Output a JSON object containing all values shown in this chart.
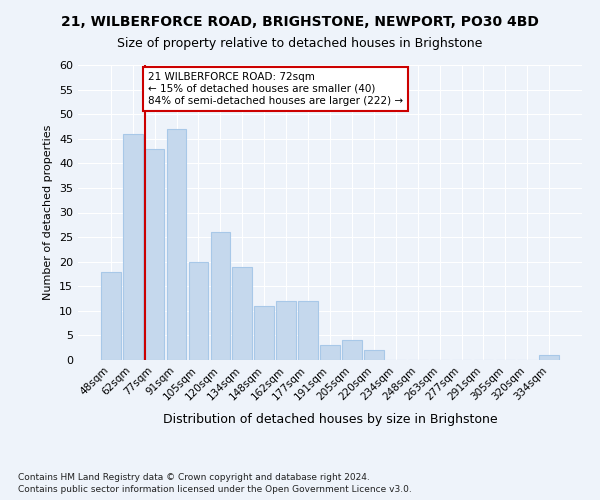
{
  "title1": "21, WILBERFORCE ROAD, BRIGHSTONE, NEWPORT, PO30 4BD",
  "title2": "Size of property relative to detached houses in Brighstone",
  "xlabel": "Distribution of detached houses by size in Brighstone",
  "ylabel": "Number of detached properties",
  "categories": [
    "48sqm",
    "62sqm",
    "77sqm",
    "91sqm",
    "105sqm",
    "120sqm",
    "134sqm",
    "148sqm",
    "162sqm",
    "177sqm",
    "191sqm",
    "205sqm",
    "220sqm",
    "234sqm",
    "248sqm",
    "263sqm",
    "277sqm",
    "291sqm",
    "305sqm",
    "320sqm",
    "334sqm"
  ],
  "values": [
    18,
    46,
    43,
    47,
    20,
    26,
    19,
    11,
    12,
    12,
    3,
    4,
    2,
    0,
    0,
    0,
    0,
    0,
    0,
    0,
    1
  ],
  "bar_color": "#c5d8ed",
  "bar_edge_color": "#a8c8e8",
  "red_line_index": 2,
  "red_line_color": "#cc0000",
  "annotation_text": "21 WILBERFORCE ROAD: 72sqm\n← 15% of detached houses are smaller (40)\n84% of semi-detached houses are larger (222) →",
  "annotation_box_color": "#ffffff",
  "annotation_box_edge_color": "#cc0000",
  "ylim": [
    0,
    60
  ],
  "yticks": [
    0,
    5,
    10,
    15,
    20,
    25,
    30,
    35,
    40,
    45,
    50,
    55,
    60
  ],
  "footer1": "Contains HM Land Registry data © Crown copyright and database right 2024.",
  "footer2": "Contains public sector information licensed under the Open Government Licence v3.0.",
  "bg_color": "#eef3fa",
  "grid_color": "#ffffff",
  "title1_fontsize": 10,
  "title2_fontsize": 9
}
